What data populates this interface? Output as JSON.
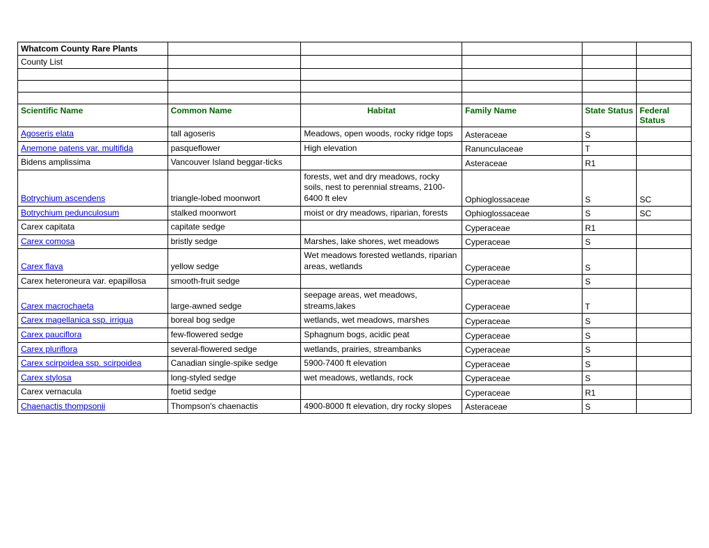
{
  "title": "Whatcom County Rare Plants",
  "subtitle": "County List",
  "headers": {
    "scientific": "Scientific Name",
    "common": "Common Name",
    "habitat": "Habitat",
    "family": "Family Name",
    "state": "State Status",
    "federal": "Federal Status"
  },
  "rows": [
    {
      "sci": "Agoseris elata",
      "link": true,
      "common": "tall agoseris",
      "habitat": "Meadows, open woods, rocky ridge tops",
      "family": "Asteraceae",
      "state": "S",
      "federal": ""
    },
    {
      "sci": "Anemone patens var. multifida",
      "link": true,
      "common": "pasqueflower",
      "habitat": "High elevation",
      "family": "Ranunculaceae",
      "state": "T",
      "federal": ""
    },
    {
      "sci": "Bidens amplissima",
      "link": false,
      "common": "Vancouver Island beggar-ticks",
      "habitat": "",
      "family": "Asteraceae",
      "state": "R1",
      "federal": ""
    },
    {
      "sci": "Botrychium ascendens",
      "link": true,
      "common": "triangle-lobed moonwort",
      "habitat": "forests, wet and dry meadows, rocky soils, nest to perennial streams, 2100-6400 ft elev",
      "family": "Ophioglossaceae",
      "state": "S",
      "federal": "SC"
    },
    {
      "sci": "Botrychium pedunculosum",
      "link": true,
      "common": "stalked moonwort",
      "habitat": "moist or dry meadows, riparian, forests",
      "family": "Ophioglossaceae",
      "state": "S",
      "federal": "SC"
    },
    {
      "sci": "Carex capitata",
      "link": false,
      "common": "capitate sedge",
      "habitat": "",
      "family": "Cyperaceae",
      "state": "R1",
      "federal": ""
    },
    {
      "sci": "Carex comosa",
      "link": true,
      "common": "bristly sedge",
      "habitat": "Marshes, lake shores, wet meadows",
      "family": "Cyperaceae",
      "state": "S",
      "federal": ""
    },
    {
      "sci": "Carex flava",
      "link": true,
      "common": "yellow sedge",
      "habitat": "Wet meadows forested wetlands, riparian areas, wetlands",
      "family": "Cyperaceae",
      "state": "S",
      "federal": ""
    },
    {
      "sci": "Carex heteroneura var. epapillosa",
      "link": false,
      "common": "smooth-fruit sedge",
      "habitat": "",
      "family": "Cyperaceae",
      "state": "S",
      "federal": ""
    },
    {
      "sci": "Carex macrochaeta",
      "link": true,
      "common": "large-awned sedge",
      "habitat": "seepage areas, wet meadows, streams,lakes",
      "family": "Cyperaceae",
      "state": "T",
      "federal": ""
    },
    {
      "sci": "Carex magellanica ssp. irrigua",
      "link": true,
      "common": "boreal bog sedge",
      "habitat": "wetlands, wet meadows, marshes",
      "family": "Cyperaceae",
      "state": "S",
      "federal": ""
    },
    {
      "sci": "Carex pauciflora",
      "link": true,
      "common": "few-flowered sedge",
      "habitat": "Sphagnum bogs, acidic peat",
      "family": "Cyperaceae",
      "state": "S",
      "federal": ""
    },
    {
      "sci": "Carex pluriflora",
      "link": true,
      "common": "several-flowered sedge",
      "habitat": "wetlands, prairies, streambanks",
      "family": "Cyperaceae",
      "state": "S",
      "federal": ""
    },
    {
      "sci": "Carex scirpoidea ssp. scirpoidea",
      "link": true,
      "common": "Canadian single-spike sedge",
      "habitat": "5900-7400 ft elevation",
      "family": "Cyperaceae",
      "state": "S",
      "federal": ""
    },
    {
      "sci": "Carex stylosa",
      "link": true,
      "common": "long-styled sedge",
      "habitat": "wet meadows, wetlands, rock",
      "family": "Cyperaceae",
      "state": "S",
      "federal": ""
    },
    {
      "sci": "Carex vernacula",
      "link": false,
      "common": "foetid sedge",
      "habitat": "",
      "family": "Cyperaceae",
      "state": "R1",
      "federal": ""
    },
    {
      "sci": "Chaenactis thompsonii",
      "link": true,
      "common": "Thompson's chaenactis",
      "habitat": "4900-8000 ft elevation, dry rocky slopes",
      "family": "Asteraceae",
      "state": "S",
      "federal": ""
    }
  ],
  "colors": {
    "header_text": "#006400",
    "link_text": "#0000cc",
    "border": "#000000",
    "background": "#ffffff"
  }
}
